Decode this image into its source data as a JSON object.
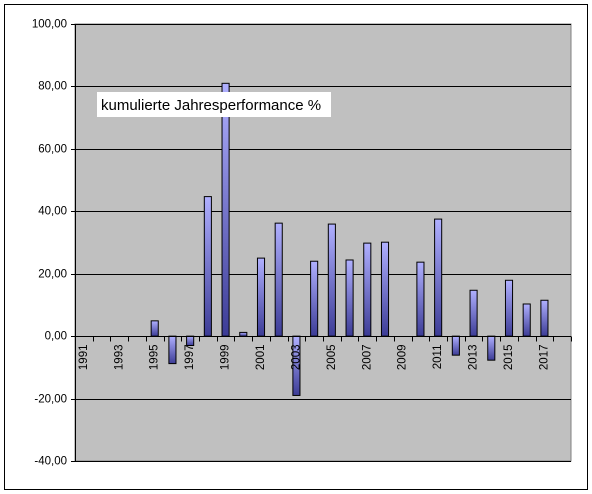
{
  "chart_data": {
    "type": "bar",
    "annotation": "kumulierte Jahresperformance %",
    "x": [
      1995,
      1996,
      1997,
      1998,
      1999,
      2000,
      2001,
      2002,
      2003,
      2004,
      2005,
      2006,
      2007,
      2008,
      2010,
      2011,
      2012,
      2013,
      2014,
      2015,
      2016,
      2017
    ],
    "values": [
      4.9,
      -8.8,
      -3.0,
      44.7,
      81.0,
      1.2,
      25.0,
      36.2,
      -19.0,
      24.0,
      35.9,
      24.4,
      29.8,
      30.1,
      23.7,
      37.5,
      -6.1,
      14.7,
      -7.7,
      17.9,
      10.3,
      11.5
    ],
    "xlim": [
      1991,
      2018
    ],
    "ylim": [
      -40,
      100
    ],
    "x_tick_labels": [
      "1991",
      "1993",
      "1995",
      "1997",
      "1999",
      "2001",
      "2003",
      "2005",
      "2007",
      "2009",
      "2011",
      "2013",
      "2015",
      "2017"
    ],
    "y_tick_labels": [
      "100,00",
      "80,00",
      "60,00",
      "40,00",
      "20,00",
      "0,00",
      "-20,00",
      "-40,00"
    ],
    "y_grid": true,
    "x_grid": false,
    "legend": false,
    "colors": {
      "chart_background": "#FFFFFF",
      "plot_area": "#C0C0C0",
      "bar_top": "#B0B0FF",
      "bar_bottom": "#3C3C96",
      "gridline": "#000000"
    }
  }
}
